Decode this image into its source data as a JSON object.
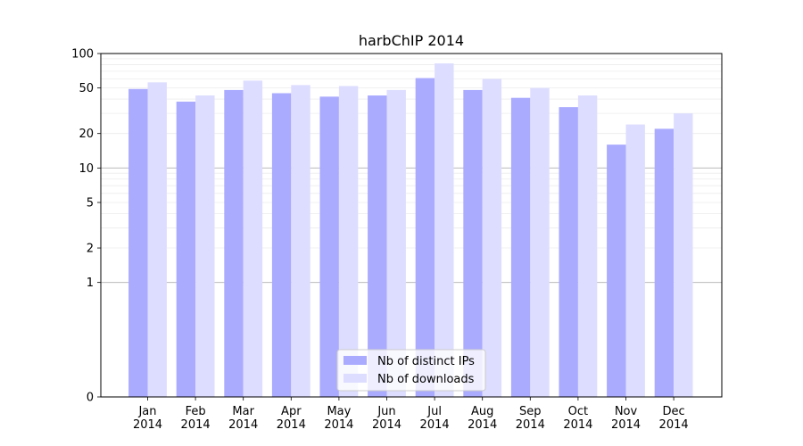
{
  "chart_data": {
    "type": "bar",
    "title": "harbChIP 2014",
    "xlabel": "",
    "ylabel": "",
    "yscale": "symlog",
    "ylim": [
      0,
      100
    ],
    "y_ticks": [
      "0",
      "1",
      "2",
      "5",
      "10",
      "20",
      "50",
      "100"
    ],
    "y_tick_values": [
      0,
      1,
      2,
      5,
      10,
      20,
      50,
      100
    ],
    "grid": "horizontal",
    "legend_position": "bottom-center",
    "categories": [
      "Jan\n2014",
      "Feb\n2014",
      "Mar\n2014",
      "Apr\n2014",
      "May\n2014",
      "Jun\n2014",
      "Jul\n2014",
      "Aug\n2014",
      "Sep\n2014",
      "Oct\n2014",
      "Nov\n2014",
      "Dec\n2014"
    ],
    "series": [
      {
        "name": "Nb of distinct IPs",
        "color": "#aaaaff",
        "values": [
          49,
          38,
          48,
          45,
          42,
          43,
          61,
          48,
          41,
          34,
          16,
          22
        ]
      },
      {
        "name": "Nb of downloads",
        "color": "#ddddff",
        "values": [
          56,
          43,
          58,
          53,
          52,
          48,
          82,
          60,
          50,
          43,
          24,
          30
        ]
      }
    ]
  }
}
